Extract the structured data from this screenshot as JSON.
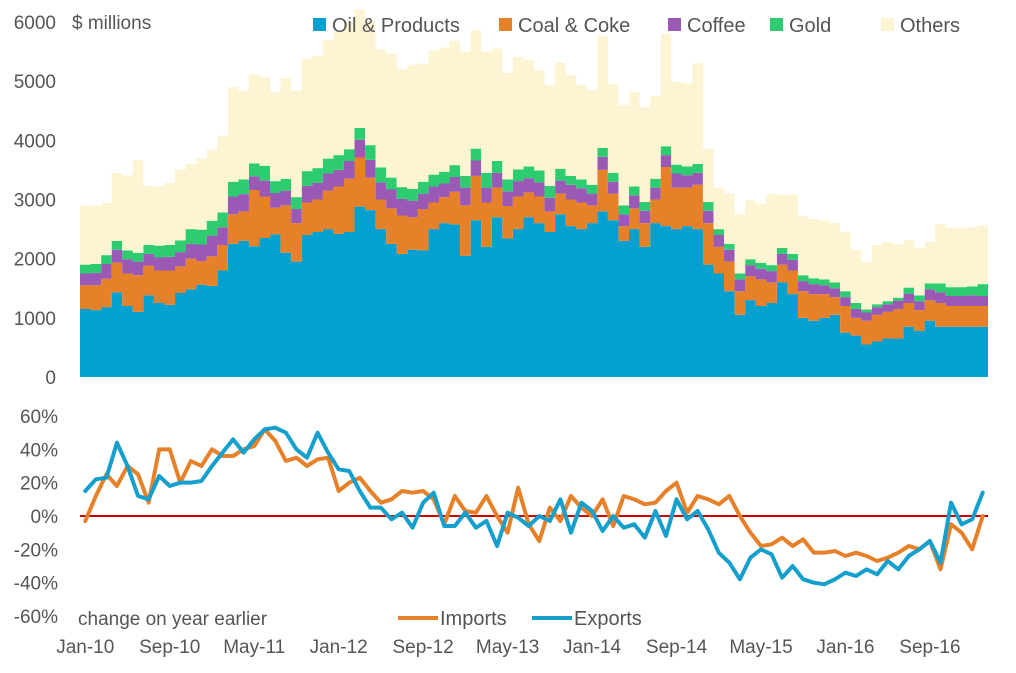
{
  "chart_data": [
    {
      "type": "area",
      "stacked": true,
      "unit_label": "$ millions",
      "xlabel": "",
      "ylabel": "",
      "ylim": [
        0,
        6000
      ],
      "yticks": [
        "0",
        "1000",
        "2000",
        "3000",
        "4000",
        "5000",
        "6000"
      ],
      "grid": false,
      "legend_position": "top",
      "x_start": "Jan-10",
      "x_step": "1 month",
      "series": [
        {
          "name": "Oil & Products",
          "color": "#04a0d0",
          "values": [
            1150,
            1130,
            1180,
            1430,
            1200,
            1100,
            1380,
            1250,
            1220,
            1420,
            1480,
            1560,
            1540,
            1800,
            2250,
            2300,
            2210,
            2350,
            2410,
            2100,
            1950,
            2400,
            2450,
            2500,
            2420,
            2450,
            2880,
            2820,
            2500,
            2250,
            2080,
            2150,
            2140,
            2500,
            2600,
            2580,
            2050,
            2650,
            2200,
            2700,
            2340,
            2500,
            2700,
            2600,
            2450,
            2750,
            2550,
            2500,
            2600,
            2800,
            2650,
            2300,
            2500,
            2200,
            2600,
            2550,
            2500,
            2550,
            2500,
            1900,
            1750,
            1450,
            1050,
            1300,
            1200,
            1250,
            1600,
            1400,
            1000,
            950,
            1000,
            1050,
            750,
            700,
            550,
            600,
            650,
            650,
            850,
            780,
            950,
            850,
            850,
            850,
            850,
            850
          ]
        },
        {
          "name": "Coal & Coke",
          "color": "#e6812a",
          "values": [
            400,
            420,
            480,
            500,
            550,
            620,
            500,
            550,
            580,
            450,
            520,
            400,
            500,
            430,
            500,
            500,
            950,
            700,
            450,
            800,
            650,
            550,
            550,
            650,
            800,
            900,
            830,
            550,
            500,
            600,
            650,
            550,
            700,
            450,
            440,
            550,
            850,
            750,
            750,
            500,
            550,
            550,
            420,
            450,
            350,
            350,
            450,
            450,
            300,
            700,
            450,
            250,
            350,
            400,
            400,
            1000,
            700,
            650,
            750,
            700,
            450,
            500,
            400,
            400,
            450,
            350,
            300,
            400,
            450,
            450,
            400,
            300,
            450,
            300,
            400,
            450,
            450,
            500,
            400,
            350,
            350,
            400,
            350,
            350,
            350,
            350
          ]
        },
        {
          "name": "Coffee",
          "color": "#9b59b6",
          "values": [
            200,
            210,
            250,
            220,
            240,
            230,
            200,
            220,
            230,
            240,
            250,
            280,
            350,
            300,
            300,
            290,
            230,
            270,
            250,
            250,
            240,
            280,
            280,
            290,
            280,
            300,
            300,
            300,
            290,
            320,
            280,
            280,
            260,
            270,
            230,
            250,
            300,
            260,
            250,
            250,
            250,
            260,
            240,
            240,
            230,
            220,
            250,
            240,
            200,
            220,
            200,
            200,
            220,
            210,
            200,
            200,
            240,
            210,
            200,
            210,
            200,
            200,
            200,
            190,
            180,
            190,
            180,
            180,
            170,
            170,
            150,
            150,
            150,
            150,
            140,
            130,
            130,
            140,
            160,
            150,
            180,
            180,
            170,
            170,
            180,
            170
          ]
        },
        {
          "name": "Gold",
          "color": "#2ecc71",
          "values": [
            150,
            150,
            150,
            150,
            150,
            150,
            150,
            200,
            200,
            200,
            250,
            250,
            250,
            250,
            250,
            250,
            220,
            250,
            200,
            200,
            200,
            250,
            250,
            250,
            250,
            200,
            200,
            250,
            250,
            200,
            200,
            200,
            200,
            200,
            200,
            200,
            200,
            200,
            250,
            200,
            200,
            200,
            200,
            200,
            200,
            200,
            150,
            150,
            150,
            150,
            150,
            150,
            150,
            150,
            150,
            150,
            150,
            150,
            150,
            150,
            100,
            100,
            100,
            100,
            100,
            100,
            100,
            100,
            100,
            100,
            100,
            100,
            100,
            100,
            50,
            50,
            50,
            50,
            100,
            100,
            100,
            150,
            150,
            150,
            150,
            200
          ]
        },
        {
          "name": "Others",
          "color": "#fdf4d4",
          "values": [
            1000,
            980,
            880,
            1150,
            1270,
            1570,
            1000,
            1000,
            1050,
            1190,
            1100,
            1200,
            1200,
            1300,
            1600,
            1500,
            1500,
            1500,
            1500,
            1700,
            1800,
            1900,
            1900,
            2000,
            2100,
            2150,
            2000,
            2100,
            2000,
            2100,
            2000,
            2100,
            2000,
            2100,
            2100,
            2100,
            2100,
            2000,
            2050,
            1900,
            1800,
            1900,
            1800,
            1700,
            1700,
            1800,
            1700,
            1600,
            1600,
            1900,
            1500,
            1700,
            1600,
            1600,
            1400,
            1900,
            1400,
            1400,
            1700,
            900,
            700,
            850,
            1000,
            1000,
            1000,
            1200,
            900,
            1000,
            1000,
            1000,
            1000,
            1000,
            1000,
            900,
            800,
            1000,
            1000,
            900,
            800,
            800,
            700,
            1000,
            1000,
            1000,
            1000,
            1000
          ]
        }
      ]
    },
    {
      "type": "line",
      "annotation": "change on year earlier",
      "xlabel": "",
      "ylabel": "",
      "ylim": [
        -60,
        60
      ],
      "yticks": [
        "-60%",
        "-40%",
        "-20%",
        "0%",
        "20%",
        "40%",
        "60%"
      ],
      "x_tick_labels": [
        "Jan-10",
        "Sep-10",
        "May-11",
        "Jan-12",
        "Sep-12",
        "May-13",
        "Jan-14",
        "Sep-14",
        "May-15",
        "Jan-16",
        "Sep-16"
      ],
      "zero_line_color": "#cc0000",
      "legend_position": "bottom-center",
      "series": [
        {
          "name": "Imports",
          "color": "#e6812a",
          "values": [
            -3,
            12,
            25,
            18,
            30,
            25,
            8,
            40,
            40,
            20,
            33,
            30,
            40,
            36,
            36,
            40,
            42,
            52,
            45,
            33,
            35,
            30,
            34,
            35,
            15,
            20,
            23,
            15,
            8,
            10,
            15,
            14,
            15,
            10,
            -5,
            12,
            3,
            2,
            12,
            0,
            -10,
            17,
            -5,
            -15,
            5,
            -3,
            12,
            5,
            0,
            10,
            -6,
            12,
            10,
            7,
            8,
            15,
            20,
            2,
            12,
            10,
            7,
            12,
            0,
            -10,
            -18,
            -17,
            -13,
            -18,
            -14,
            -22,
            -22,
            -21,
            -24,
            -22,
            -24,
            -27,
            -25,
            -22,
            -18,
            -20,
            -15,
            -32,
            -5,
            -10,
            -20,
            0
          ],
          "role": "imports"
        },
        {
          "name": "Exports",
          "color": "#149fcd",
          "values": [
            15,
            22,
            23,
            44,
            30,
            12,
            10,
            24,
            18,
            20,
            20,
            21,
            30,
            38,
            46,
            38,
            46,
            52,
            53,
            50,
            40,
            35,
            50,
            38,
            28,
            27,
            15,
            5,
            5,
            -2,
            2,
            -7,
            8,
            14,
            -6,
            -6,
            2,
            -7,
            -3,
            -18,
            2,
            -1,
            -6,
            0,
            -3,
            10,
            -10,
            8,
            3,
            -9,
            0,
            -7,
            -5,
            -13,
            3,
            -12,
            10,
            -2,
            3,
            -8,
            -22,
            -28,
            -38,
            -25,
            -20,
            -23,
            -37,
            -30,
            -38,
            -40,
            -41,
            -38,
            -34,
            -36,
            -32,
            -35,
            -27,
            -32,
            -24,
            -20,
            -15,
            -28,
            8,
            -5,
            -2,
            14
          ],
          "role": "exports"
        }
      ]
    }
  ]
}
